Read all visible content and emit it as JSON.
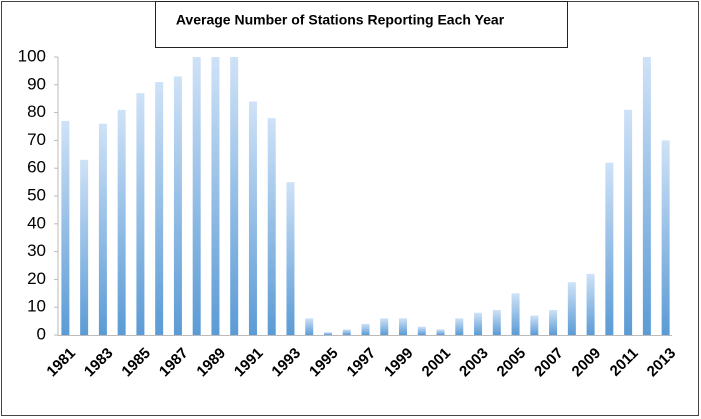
{
  "chart_data": {
    "type": "bar",
    "title": "Average Number of Stations Reporting Each Year",
    "categories": [
      "1981",
      null,
      "1983",
      null,
      "1985",
      null,
      "1987",
      null,
      "1989",
      null,
      "1991",
      null,
      "1993",
      null,
      "1995",
      null,
      "1997",
      null,
      "1999",
      null,
      "2001",
      null,
      "2003",
      null,
      "2005",
      null,
      "2007",
      null,
      "2009",
      null,
      "2011",
      null,
      "2013"
    ],
    "values": [
      77,
      63,
      76,
      81,
      87,
      91,
      93,
      100,
      100,
      100,
      84,
      78,
      55,
      6,
      1,
      2,
      4,
      6,
      6,
      3,
      2,
      6,
      8,
      9,
      15,
      7,
      9,
      19,
      22,
      62,
      81,
      100,
      70
    ],
    "color": "#5b9bd5",
    "ylim": [
      0,
      100
    ],
    "yticks": [
      0,
      10,
      20,
      30,
      40,
      50,
      60,
      70,
      80,
      90,
      100
    ],
    "grid": false
  }
}
